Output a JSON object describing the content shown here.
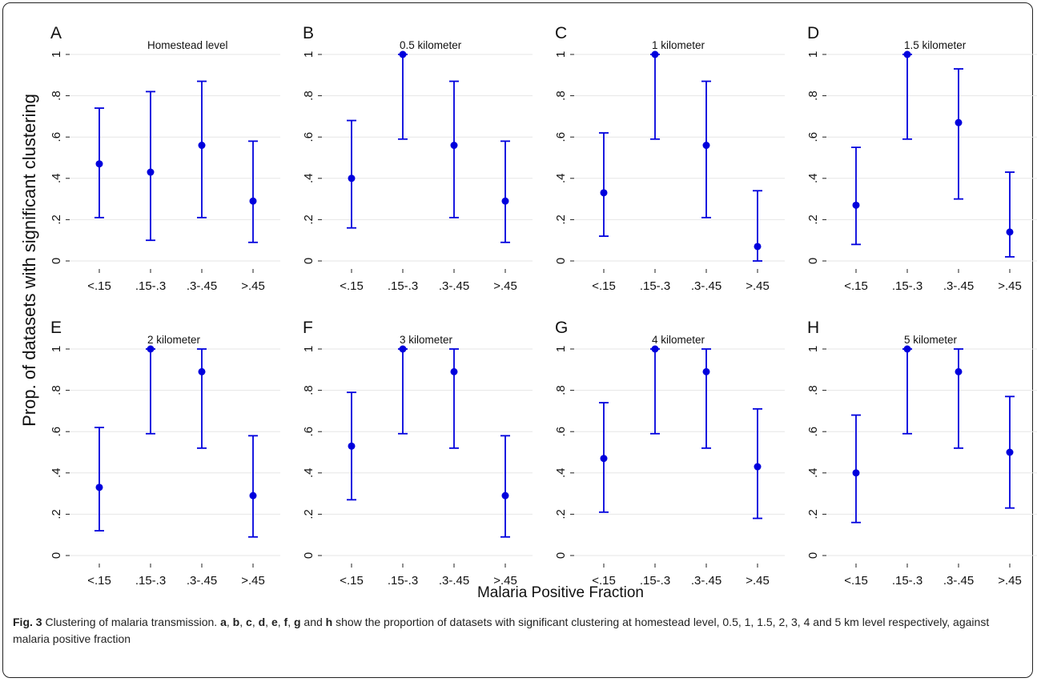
{
  "figure": {
    "ylabel": "Prop. of datasets with significant clustering",
    "xlabel": "Malaria Positive Fraction",
    "caption": {
      "label": "Fig. 3",
      "title": "Clustering of malaria transmission.",
      "panels_bold": [
        "a",
        "b",
        "c",
        "d",
        "e",
        "f",
        "g",
        "h"
      ],
      "sep1": ", ",
      "and": " and ",
      "rest": " show the proportion of datasets with significant clustering at homestead level, 0.5, 1, 1.5, 2, 3, 4 and 5 km level respectively, against malaria positive fraction"
    },
    "colors": {
      "marker": "#0000dd",
      "grid": "#e6e6e6",
      "axis": "#222222",
      "text": "#111111"
    }
  },
  "chart_data": [
    {
      "type": "scatter",
      "panel": "A",
      "title": "Homestead level",
      "categories": [
        "<.15",
        ".15-.3",
        ".3-.45",
        ">.45"
      ],
      "yticks": [
        "0",
        ".2",
        ".4",
        ".6",
        ".8",
        "1"
      ],
      "ylim": [
        0,
        1
      ],
      "series": [
        {
          "values": [
            0.47,
            0.43,
            0.56,
            0.29
          ],
          "lower": [
            0.21,
            0.1,
            0.21,
            0.09
          ],
          "upper": [
            0.74,
            0.82,
            0.87,
            0.58
          ]
        }
      ]
    },
    {
      "type": "scatter",
      "panel": "B",
      "title": "0.5 kilometer",
      "categories": [
        "<.15",
        ".15-.3",
        ".3-.45",
        ">.45"
      ],
      "yticks": [
        "0",
        ".2",
        ".4",
        ".6",
        ".8",
        "1"
      ],
      "ylim": [
        0,
        1
      ],
      "series": [
        {
          "values": [
            0.4,
            1.0,
            0.56,
            0.29
          ],
          "lower": [
            0.16,
            0.59,
            0.21,
            0.09
          ],
          "upper": [
            0.68,
            1.0,
            0.87,
            0.58
          ]
        }
      ]
    },
    {
      "type": "scatter",
      "panel": "C",
      "title": "1 kilometer",
      "categories": [
        "<.15",
        ".15-.3",
        ".3-.45",
        ">.45"
      ],
      "yticks": [
        "0",
        ".2",
        ".4",
        ".6",
        ".8",
        "1"
      ],
      "ylim": [
        0,
        1
      ],
      "series": [
        {
          "values": [
            0.33,
            1.0,
            0.56,
            0.07
          ],
          "lower": [
            0.12,
            0.59,
            0.21,
            0.0
          ],
          "upper": [
            0.62,
            1.0,
            0.87,
            0.34
          ]
        }
      ]
    },
    {
      "type": "scatter",
      "panel": "D",
      "title": "1.5 kilometer",
      "categories": [
        "<.15",
        ".15-.3",
        ".3-.45",
        ">.45"
      ],
      "yticks": [
        "0",
        ".2",
        ".4",
        ".6",
        ".8",
        "1"
      ],
      "ylim": [
        0,
        1
      ],
      "series": [
        {
          "values": [
            0.27,
            1.0,
            0.67,
            0.14
          ],
          "lower": [
            0.08,
            0.59,
            0.3,
            0.02
          ],
          "upper": [
            0.55,
            1.0,
            0.93,
            0.43
          ]
        }
      ]
    },
    {
      "type": "scatter",
      "panel": "E",
      "title": "2 kilometer",
      "categories": [
        "<.15",
        ".15-.3",
        ".3-.45",
        ">.45"
      ],
      "yticks": [
        "0",
        ".2",
        ".4",
        ".6",
        ".8",
        "1"
      ],
      "ylim": [
        0,
        1
      ],
      "series": [
        {
          "values": [
            0.33,
            1.0,
            0.89,
            0.29
          ],
          "lower": [
            0.12,
            0.59,
            0.52,
            0.09
          ],
          "upper": [
            0.62,
            1.0,
            1.0,
            0.58
          ]
        }
      ]
    },
    {
      "type": "scatter",
      "panel": "F",
      "title": "3 kilometer",
      "categories": [
        "<.15",
        ".15-.3",
        ".3-.45",
        ">.45"
      ],
      "yticks": [
        "0",
        ".2",
        ".4",
        ".6",
        ".8",
        "1"
      ],
      "ylim": [
        0,
        1
      ],
      "series": [
        {
          "values": [
            0.53,
            1.0,
            0.89,
            0.29
          ],
          "lower": [
            0.27,
            0.59,
            0.52,
            0.09
          ],
          "upper": [
            0.79,
            1.0,
            1.0,
            0.58
          ]
        }
      ]
    },
    {
      "type": "scatter",
      "panel": "G",
      "title": "4 kilometer",
      "categories": [
        "<.15",
        ".15-.3",
        ".3-.45",
        ">.45"
      ],
      "yticks": [
        "0",
        ".2",
        ".4",
        ".6",
        ".8",
        "1"
      ],
      "ylim": [
        0,
        1
      ],
      "series": [
        {
          "values": [
            0.47,
            1.0,
            0.89,
            0.43
          ],
          "lower": [
            0.21,
            0.59,
            0.52,
            0.18
          ],
          "upper": [
            0.74,
            1.0,
            1.0,
            0.71
          ]
        }
      ]
    },
    {
      "type": "scatter",
      "panel": "H",
      "title": "5 kilometer",
      "categories": [
        "<.15",
        ".15-.3",
        ".3-.45",
        ">.45"
      ],
      "yticks": [
        "0",
        ".2",
        ".4",
        ".6",
        ".8",
        "1"
      ],
      "ylim": [
        0,
        1
      ],
      "series": [
        {
          "values": [
            0.4,
            1.0,
            0.89,
            0.5
          ],
          "lower": [
            0.16,
            0.59,
            0.52,
            0.23
          ],
          "upper": [
            0.68,
            1.0,
            1.0,
            0.77
          ]
        }
      ]
    }
  ]
}
